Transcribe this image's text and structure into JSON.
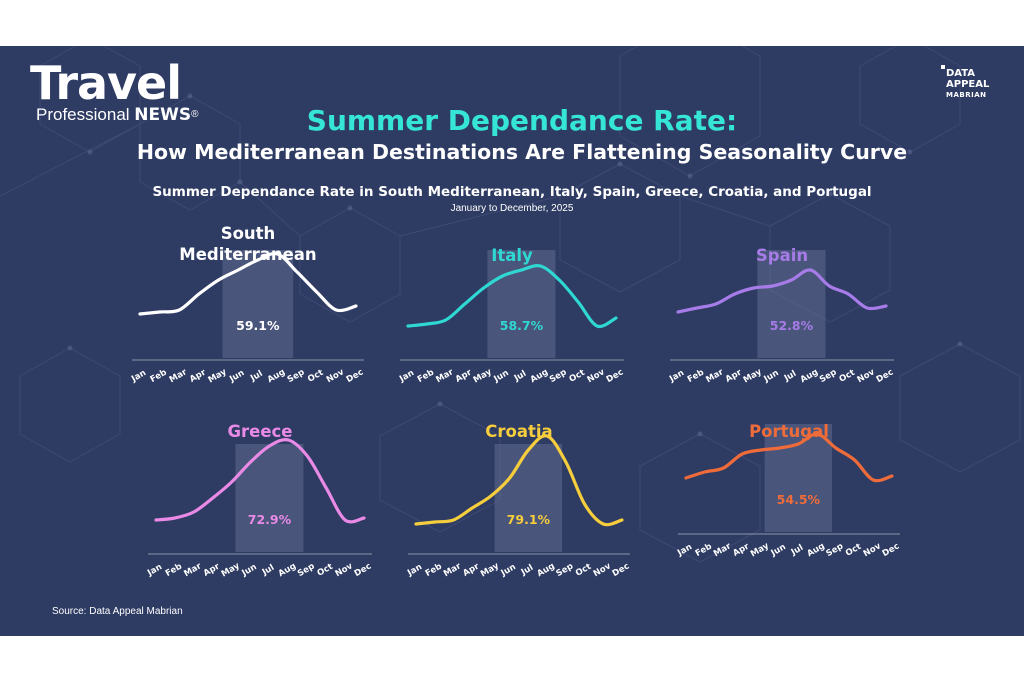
{
  "header": {
    "logo_word": "Travel",
    "logo_sub_regular": "Professional",
    "logo_sub_bold": "NEWS",
    "logo_reg": "®",
    "brand_line1": "DATA",
    "brand_line2": "APPEAL",
    "brand_line3": "MABRIAN",
    "title": "Summer Dependance Rate:",
    "headline": "How Mediterranean Destinations Are Flattening Seasonality Curve",
    "subtitle": "Summer Dependance Rate in South Mediterranean, Italy, Spain, Greece, Croatia, and Portugal",
    "date_range": "January to December, 2025"
  },
  "footer": {
    "source": "Source: Data Appeal Mabrian"
  },
  "colors": {
    "background": "#2e3b63",
    "title_accent": "#35e6d6",
    "summer_band": "#6b7596"
  },
  "chart_data": [
    {
      "type": "line",
      "name": "South Mediterranean",
      "title_lines": [
        "South",
        "Mediterranean"
      ],
      "color": "#ffffff",
      "months": [
        "Jan",
        "Feb",
        "Mar",
        "Apr",
        "May",
        "Jun",
        "Jul",
        "Aug",
        "Sep",
        "Oct",
        "Nov",
        "Dec"
      ],
      "summer_months": [
        "May",
        "Jun",
        "Jul",
        "Aug",
        "Sep"
      ],
      "values": [
        18,
        20,
        22,
        38,
        52,
        62,
        72,
        78,
        60,
        40,
        22,
        26
      ],
      "label": "59.1%",
      "ylim": [
        0,
        100
      ]
    },
    {
      "type": "line",
      "name": "Italy",
      "title_lines": [
        "Italy"
      ],
      "color": "#2fd8d2",
      "months": [
        "Jan",
        "Feb",
        "Mar",
        "Apr",
        "May",
        "Jun",
        "Jul",
        "Aug",
        "Sep",
        "Oct",
        "Nov",
        "Dec"
      ],
      "summer_months": [
        "May",
        "Jun",
        "Jul",
        "Aug",
        "Sep"
      ],
      "values": [
        6,
        8,
        12,
        28,
        44,
        56,
        62,
        66,
        52,
        30,
        6,
        14
      ],
      "label": "58.7%",
      "ylim": [
        0,
        100
      ]
    },
    {
      "type": "line",
      "name": "Spain",
      "title_lines": [
        "Spain"
      ],
      "color": "#a77ce8",
      "months": [
        "Jan",
        "Feb",
        "Mar",
        "Apr",
        "May",
        "Jun",
        "Jul",
        "Aug",
        "Sep",
        "Oct",
        "Nov",
        "Dec"
      ],
      "summer_months": [
        "May",
        "Jun",
        "Jul",
        "Aug",
        "Sep"
      ],
      "values": [
        20,
        24,
        28,
        38,
        44,
        46,
        52,
        62,
        46,
        38,
        24,
        26
      ],
      "label": "52.8%",
      "ylim": [
        0,
        100
      ]
    },
    {
      "type": "line",
      "name": "Greece",
      "title_lines": [
        "Greece"
      ],
      "color": "#e98ae6",
      "months": [
        "Jan",
        "Feb",
        "Mar",
        "Apr",
        "May",
        "Jun",
        "Jul",
        "Aug",
        "Sep",
        "Oct",
        "Nov",
        "Dec"
      ],
      "summer_months": [
        "May",
        "Jun",
        "Jul",
        "Aug",
        "Sep"
      ],
      "values": [
        6,
        8,
        14,
        28,
        44,
        64,
        80,
        86,
        70,
        38,
        6,
        8
      ],
      "label": "72.9%",
      "ylim": [
        0,
        100
      ]
    },
    {
      "type": "line",
      "name": "Croatia",
      "title_lines": [
        "Croatia"
      ],
      "color": "#f6cd3c",
      "months": [
        "Jan",
        "Feb",
        "Mar",
        "Apr",
        "May",
        "Jun",
        "Jul",
        "Aug",
        "Sep",
        "Oct",
        "Nov",
        "Dec"
      ],
      "summer_months": [
        "May",
        "Jun",
        "Jul",
        "Aug",
        "Sep"
      ],
      "values": [
        2,
        4,
        6,
        18,
        30,
        48,
        76,
        90,
        64,
        22,
        2,
        6
      ],
      "label": "79.1%",
      "ylim": [
        0,
        100
      ]
    },
    {
      "type": "line",
      "name": "Portugal",
      "title_lines": [
        "Portugal"
      ],
      "color": "#ef6c3a",
      "months": [
        "Jan",
        "Feb",
        "Mar",
        "Apr",
        "May",
        "Jun",
        "Jul",
        "Aug",
        "Sep",
        "Oct",
        "Nov",
        "Dec"
      ],
      "summer_months": [
        "May",
        "Jun",
        "Jul",
        "Aug",
        "Sep"
      ],
      "values": [
        28,
        34,
        38,
        52,
        56,
        58,
        62,
        72,
        58,
        46,
        26,
        30
      ],
      "label": "54.5%",
      "ylim": [
        0,
        100
      ]
    }
  ]
}
